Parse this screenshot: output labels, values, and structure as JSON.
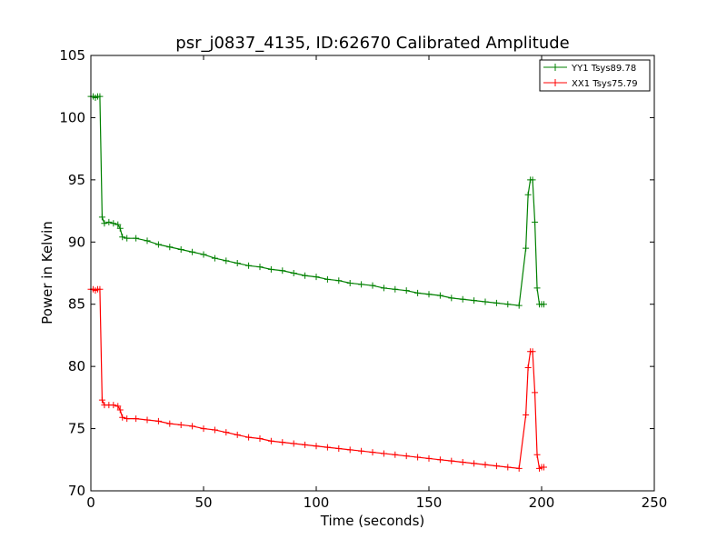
{
  "chart_data": {
    "type": "line",
    "title": "psr_j0837_4135, ID:62670 Calibrated Amplitude",
    "xlabel": "Time (seconds)",
    "ylabel": "Power in Kelvin",
    "xlim": [
      0,
      250
    ],
    "ylim": [
      70,
      105
    ],
    "xticks": [
      0,
      50,
      100,
      150,
      200,
      250
    ],
    "yticks": [
      70,
      75,
      80,
      85,
      90,
      95,
      100,
      105
    ],
    "grid": false,
    "legend_position": "top-right",
    "series": [
      {
        "name": "YY1 Tsys89.78",
        "color": "#008000",
        "marker": "+",
        "x": [
          0,
          1,
          2,
          3,
          4,
          5,
          6,
          8,
          10,
          12,
          13,
          14,
          16,
          20,
          25,
          30,
          35,
          40,
          45,
          50,
          55,
          60,
          65,
          70,
          75,
          80,
          85,
          90,
          95,
          100,
          105,
          110,
          115,
          120,
          125,
          130,
          135,
          140,
          145,
          150,
          155,
          160,
          165,
          170,
          175,
          180,
          185,
          190,
          193,
          194,
          195,
          196,
          197,
          198,
          199,
          200,
          201
        ],
        "y": [
          101.7,
          101.7,
          101.6,
          101.7,
          101.7,
          92.0,
          91.5,
          91.6,
          91.5,
          91.4,
          91.1,
          90.4,
          90.3,
          90.3,
          90.1,
          89.8,
          89.6,
          89.4,
          89.2,
          89.0,
          88.7,
          88.5,
          88.3,
          88.1,
          88.0,
          87.8,
          87.7,
          87.5,
          87.3,
          87.2,
          87.0,
          86.9,
          86.7,
          86.6,
          86.5,
          86.3,
          86.2,
          86.1,
          85.9,
          85.8,
          85.7,
          85.5,
          85.4,
          85.3,
          85.2,
          85.1,
          85.0,
          84.9,
          89.5,
          93.8,
          95.0,
          95.0,
          91.6,
          86.3,
          85.0,
          85.0,
          85.0
        ]
      },
      {
        "name": "XX1 Tsys75.79",
        "color": "#ff0000",
        "marker": "+",
        "x": [
          0,
          1,
          2,
          3,
          4,
          5,
          6,
          8,
          10,
          12,
          13,
          14,
          16,
          20,
          25,
          30,
          35,
          40,
          45,
          50,
          55,
          60,
          65,
          70,
          75,
          80,
          85,
          90,
          95,
          100,
          105,
          110,
          115,
          120,
          125,
          130,
          135,
          140,
          145,
          150,
          155,
          160,
          165,
          170,
          175,
          180,
          185,
          190,
          193,
          194,
          195,
          196,
          197,
          198,
          199,
          200,
          201
        ],
        "y": [
          86.2,
          86.2,
          86.1,
          86.2,
          86.2,
          77.3,
          76.9,
          76.9,
          76.9,
          76.8,
          76.5,
          75.9,
          75.8,
          75.8,
          75.7,
          75.6,
          75.4,
          75.3,
          75.2,
          75.0,
          74.9,
          74.7,
          74.5,
          74.3,
          74.2,
          74.0,
          73.9,
          73.8,
          73.7,
          73.6,
          73.5,
          73.4,
          73.3,
          73.2,
          73.1,
          73.0,
          72.9,
          72.8,
          72.7,
          72.6,
          72.5,
          72.4,
          72.3,
          72.2,
          72.1,
          72.0,
          71.9,
          71.8,
          76.1,
          79.9,
          81.2,
          81.2,
          77.9,
          72.9,
          71.8,
          71.9,
          71.9
        ]
      }
    ]
  }
}
